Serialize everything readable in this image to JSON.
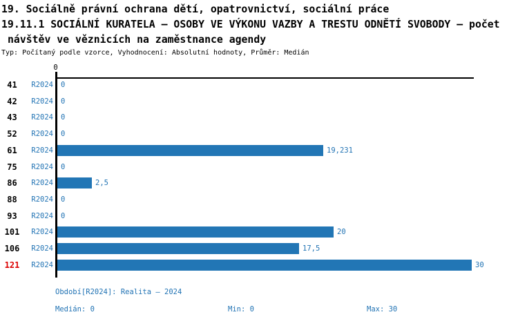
{
  "header": {
    "line1": "19. Sociálně právní ochrana dětí, opatrovnictví, sociální práce",
    "line2": "19.11.1 SOCIÁLNÍ KURATELA – OSOBY VE VÝKONU VAZBY A TRESTU ODNĚTÍ SVOBODY – počet",
    "line3": "návštěv ve věznicích na zaměstnance agendy",
    "meta": "Typ: Počítaný podle vzorce, Vyhodnocení: Absolutní hodnoty, Průměr: Medián"
  },
  "chart_data": {
    "type": "bar",
    "orientation": "horizontal",
    "title": "19.11.1 SOCIÁLNÍ KURATELA – OSOBY VE VÝKONU VAZBY A TRESTU ODNĚTÍ SVOBODY – počet návštěv ve věznicích na zaměstnance agendy",
    "series_name": "R2024",
    "categories": [
      "41",
      "42",
      "43",
      "52",
      "61",
      "75",
      "86",
      "88",
      "93",
      "101",
      "106",
      "121"
    ],
    "values": [
      0,
      0,
      0,
      0,
      19.231,
      0,
      2.5,
      0,
      0,
      20,
      17.5,
      30
    ],
    "value_labels": [
      "0",
      "0",
      "0",
      "0",
      "19,231",
      "0",
      "2,5",
      "0",
      "0",
      "20",
      "17,5",
      "30"
    ],
    "highlighted_category": "121",
    "axis_zero_label": "0",
    "xlabel": "",
    "ylabel": "",
    "xlim": [
      0,
      30.2
    ],
    "grid": false,
    "legend": false,
    "bar_color": "#2276b5",
    "text_color": "#2173b4",
    "category_color": "#000000",
    "highlight_color": "#dc0000",
    "median": 0,
    "min": 0,
    "max": 30
  },
  "footer": {
    "period": "Období[R2024]: Realita – 2024",
    "median": "Medián: 0",
    "min": "Min: 0",
    "max": "Max: 30"
  }
}
